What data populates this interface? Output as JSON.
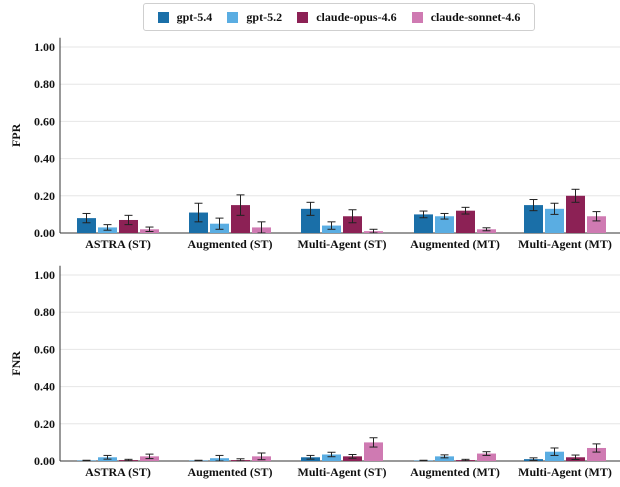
{
  "chart_data": [
    {
      "type": "bar",
      "ylabel": "FPR",
      "ylim": [
        0,
        1.05
      ],
      "yticks": [
        "0.00",
        "0.20",
        "0.40",
        "0.60",
        "0.80",
        "1.00"
      ],
      "categories": [
        "ASTRA (ST)",
        "Augmented (ST)",
        "Multi-Agent (ST)",
        "Augmented (MT)",
        "Multi-Agent (MT)"
      ],
      "grid": true,
      "error_bars": true,
      "series": [
        {
          "name": "gpt-5.4",
          "values": [
            0.08,
            0.11,
            0.13,
            0.1,
            0.15
          ],
          "errors": [
            0.025,
            0.05,
            0.035,
            0.018,
            0.03
          ]
        },
        {
          "name": "gpt-5.2",
          "values": [
            0.03,
            0.05,
            0.04,
            0.09,
            0.13
          ],
          "errors": [
            0.015,
            0.03,
            0.02,
            0.015,
            0.03
          ]
        },
        {
          "name": "claude-opus-4.6",
          "values": [
            0.07,
            0.15,
            0.09,
            0.12,
            0.2
          ],
          "errors": [
            0.025,
            0.055,
            0.035,
            0.018,
            0.035
          ]
        },
        {
          "name": "claude-sonnet-4.6",
          "values": [
            0.02,
            0.03,
            0.01,
            0.02,
            0.09
          ],
          "errors": [
            0.012,
            0.03,
            0.01,
            0.008,
            0.025
          ]
        }
      ]
    },
    {
      "type": "bar",
      "ylabel": "FNR",
      "ylim": [
        0,
        1.05
      ],
      "yticks": [
        "0.00",
        "0.20",
        "0.40",
        "0.60",
        "0.80",
        "1.00"
      ],
      "categories": [
        "ASTRA (ST)",
        "Augmented (ST)",
        "Multi-Agent (ST)",
        "Augmented (MT)",
        "Multi-Agent (MT)"
      ],
      "grid": true,
      "error_bars": true,
      "series": [
        {
          "name": "gpt-5.4",
          "values": [
            0.002,
            0.002,
            0.02,
            0.002,
            0.01
          ],
          "errors": [
            0.002,
            0.002,
            0.01,
            0.002,
            0.007
          ]
        },
        {
          "name": "gpt-5.2",
          "values": [
            0.02,
            0.015,
            0.035,
            0.025,
            0.05
          ],
          "errors": [
            0.01,
            0.015,
            0.012,
            0.008,
            0.02
          ]
        },
        {
          "name": "claude-opus-4.6",
          "values": [
            0.005,
            0.005,
            0.025,
            0.005,
            0.02
          ],
          "errors": [
            0.004,
            0.007,
            0.01,
            0.004,
            0.012
          ]
        },
        {
          "name": "claude-sonnet-4.6",
          "values": [
            0.025,
            0.025,
            0.1,
            0.04,
            0.07
          ],
          "errors": [
            0.012,
            0.018,
            0.025,
            0.01,
            0.022
          ]
        }
      ]
    }
  ],
  "legend": {
    "placement": "top-center",
    "items": [
      {
        "name": "gpt-5.4",
        "color": "#1a6fa8"
      },
      {
        "name": "gpt-5.2",
        "color": "#5aade2"
      },
      {
        "name": "claude-opus-4.6",
        "color": "#8c2155"
      },
      {
        "name": "claude-sonnet-4.6",
        "color": "#cf7ab2"
      }
    ]
  }
}
